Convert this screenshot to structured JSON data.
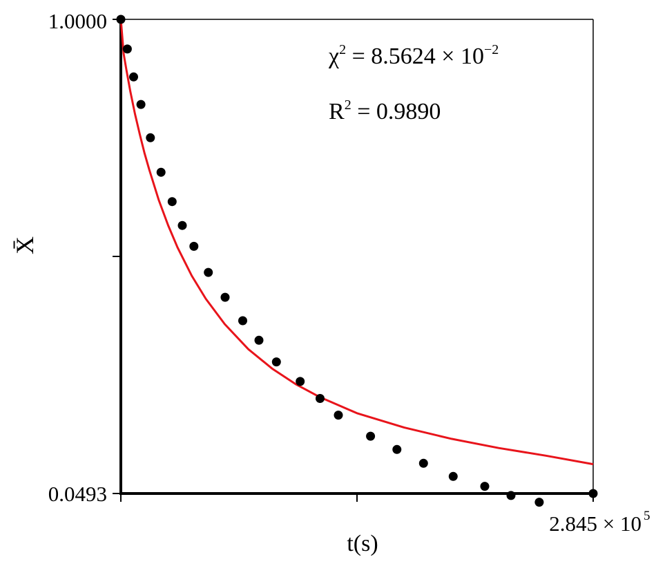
{
  "chart_data": {
    "type": "scatter",
    "xlabel": "t(s)",
    "ylabel": "X̄",
    "xlim": [
      0,
      284500
    ],
    "ylim": [
      0.0493,
      1.0
    ],
    "x_tick_labels": [
      "",
      "",
      "2.845 × 10"
    ],
    "x_tick_exponent": "5",
    "y_tick_labels": [
      "1.0000",
      "",
      "0.0493"
    ],
    "annotations": [
      {
        "base": "χ",
        "sup1": "2",
        "mid": " = 8.5624 × 10",
        "sup2": "−2"
      },
      {
        "base": "R",
        "sup1": "2",
        "mid": " = 0.9890",
        "sup2": ""
      }
    ],
    "series": [
      {
        "kind": "points",
        "color": "#000000",
        "x": [
          0,
          3900,
          7700,
          12100,
          17800,
          24200,
          30900,
          37000,
          44000,
          52700,
          62800,
          73400,
          83200,
          93700,
          108000,
          120000,
          131000,
          150400,
          166300,
          182300,
          200200,
          219200,
          235000,
          252000,
          284500
        ],
        "y": [
          1.0,
          0.9405,
          0.8846,
          0.8294,
          0.7626,
          0.6934,
          0.6346,
          0.5868,
          0.5449,
          0.4927,
          0.4428,
          0.3957,
          0.3566,
          0.3131,
          0.2739,
          0.2399,
          0.2065,
          0.1642,
          0.1376,
          0.1099,
          0.0835,
          0.0637,
          0.0453,
          0.0318,
          0.0493
        ]
      },
      {
        "kind": "fit-curve",
        "color": "#e8141b",
        "x": [
          0,
          1700,
          3400,
          5700,
          8500,
          11400,
          14200,
          17100,
          22800,
          28500,
          34100,
          42700,
          51200,
          62600,
          76800,
          91100,
          105300,
          119600,
          142200,
          170700,
          199200,
          227600,
          256100,
          284500
        ],
        "y": [
          1.0,
          0.9307,
          0.8976,
          0.8557,
          0.8108,
          0.7697,
          0.7327,
          0.6988,
          0.6382,
          0.587,
          0.543,
          0.4858,
          0.4396,
          0.3889,
          0.3386,
          0.2998,
          0.2686,
          0.2431,
          0.2104,
          0.1815,
          0.1589,
          0.1405,
          0.1251,
          0.108
        ]
      }
    ]
  }
}
